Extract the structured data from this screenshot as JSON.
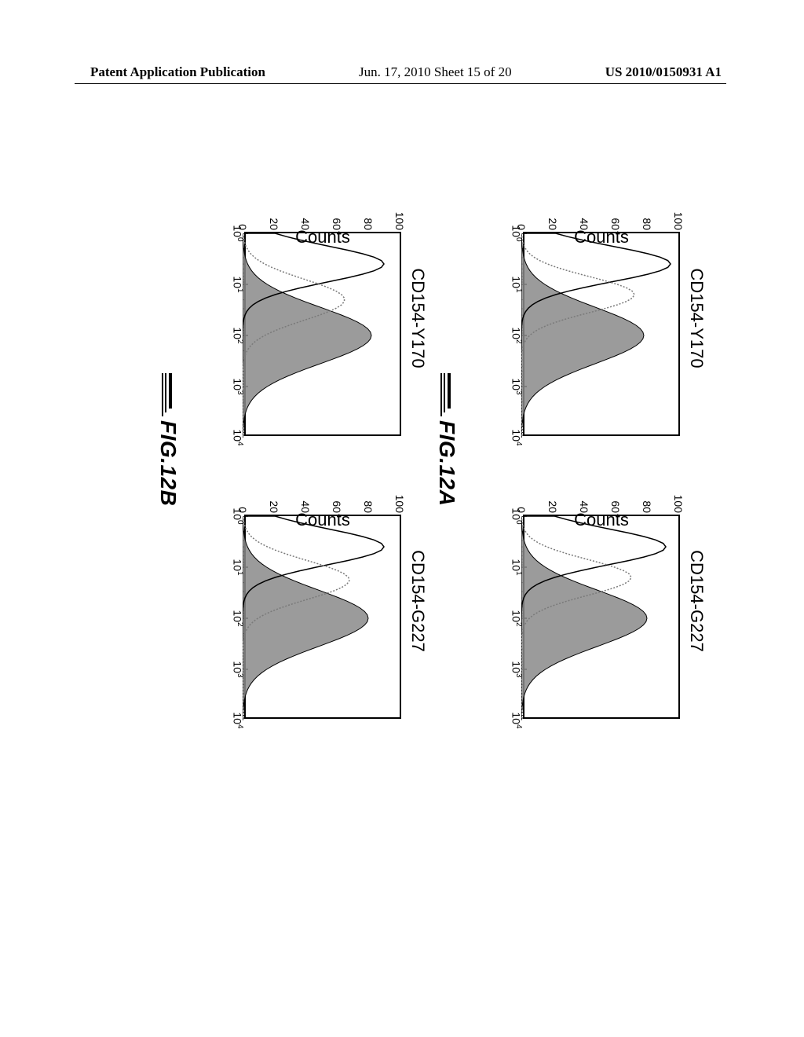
{
  "header": {
    "left": "Patent Application Publication",
    "center": "Jun. 17, 2010  Sheet 15 of 20",
    "right": "US 2010/0150931 A1"
  },
  "figures": {
    "panels": [
      {
        "id": "12A-left",
        "title": "CD154-Y170",
        "ylabel": "Counts",
        "y_ticks": [
          0,
          20,
          40,
          60,
          80,
          100
        ],
        "ylim": [
          0,
          100
        ],
        "x_ticks": [
          "10^0",
          "10^1",
          "10^2",
          "10^3",
          "10^4"
        ],
        "xlim_log": [
          0,
          4
        ],
        "type": "histogram",
        "series": [
          {
            "kind": "outline",
            "color": "#000000",
            "peak_log_x": 0.6,
            "peak_y": 95,
            "spread": 0.35
          },
          {
            "kind": "outline_dotted",
            "color": "#7a7a7a",
            "peak_log_x": 1.2,
            "peak_y": 72,
            "spread": 0.35
          },
          {
            "kind": "filled",
            "color": "#8a8a8a",
            "peak_log_x": 2.0,
            "peak_y": 78,
            "spread": 0.55
          }
        ]
      },
      {
        "id": "12A-right",
        "title": "CD154-G227",
        "ylabel": "Counts",
        "y_ticks": [
          0,
          20,
          40,
          60,
          80,
          100
        ],
        "ylim": [
          0,
          100
        ],
        "x_ticks": [
          "10^0",
          "10^1",
          "10^2",
          "10^3",
          "10^4"
        ],
        "xlim_log": [
          0,
          4
        ],
        "type": "histogram",
        "series": [
          {
            "kind": "outline",
            "color": "#000000",
            "peak_log_x": 0.6,
            "peak_y": 92,
            "spread": 0.35
          },
          {
            "kind": "outline_dotted",
            "color": "#7a7a7a",
            "peak_log_x": 1.2,
            "peak_y": 70,
            "spread": 0.35
          },
          {
            "kind": "filled",
            "color": "#8a8a8a",
            "peak_log_x": 2.0,
            "peak_y": 80,
            "spread": 0.55
          }
        ]
      },
      {
        "id": "12B-left",
        "title": "CD154-Y170",
        "ylabel": "Counts",
        "y_ticks": [
          0,
          20,
          40,
          60,
          80,
          100
        ],
        "ylim": [
          0,
          100
        ],
        "x_ticks": [
          "10^0",
          "10^1",
          "10^2",
          "10^3",
          "10^4"
        ],
        "xlim_log": [
          0,
          4
        ],
        "type": "histogram",
        "series": [
          {
            "kind": "outline",
            "color": "#000000",
            "peak_log_x": 0.6,
            "peak_y": 90,
            "spread": 0.35
          },
          {
            "kind": "outline_dotted",
            "color": "#7a7a7a",
            "peak_log_x": 1.3,
            "peak_y": 65,
            "spread": 0.4
          },
          {
            "kind": "filled",
            "color": "#8a8a8a",
            "peak_log_x": 2.0,
            "peak_y": 82,
            "spread": 0.55
          }
        ]
      },
      {
        "id": "12B-right",
        "title": "CD154-G227",
        "ylabel": "Counts",
        "y_ticks": [
          0,
          20,
          40,
          60,
          80,
          100
        ],
        "ylim": [
          0,
          100
        ],
        "x_ticks": [
          "10^0",
          "10^1",
          "10^2",
          "10^3",
          "10^4"
        ],
        "xlim_log": [
          0,
          4
        ],
        "type": "histogram",
        "series": [
          {
            "kind": "outline",
            "color": "#000000",
            "peak_log_x": 0.6,
            "peak_y": 90,
            "spread": 0.35
          },
          {
            "kind": "outline_dotted",
            "color": "#7a7a7a",
            "peak_log_x": 1.25,
            "peak_y": 68,
            "spread": 0.38
          },
          {
            "kind": "filled",
            "color": "#8a8a8a",
            "peak_log_x": 2.0,
            "peak_y": 80,
            "spread": 0.55
          }
        ]
      }
    ],
    "fig_labels": {
      "a": "FIG.12A",
      "b": "FIG.12B"
    },
    "plot_style": {
      "border_color": "#000000",
      "border_width": 2,
      "background_color": "#ffffff",
      "font_family": "Arial",
      "title_fontsize": 22,
      "axis_label_fontsize": 22,
      "tick_fontsize": 14,
      "filled_hist_color": "#8a8a8a",
      "filled_hist_pattern": "dither",
      "outline_line_width": 1.5
    }
  }
}
